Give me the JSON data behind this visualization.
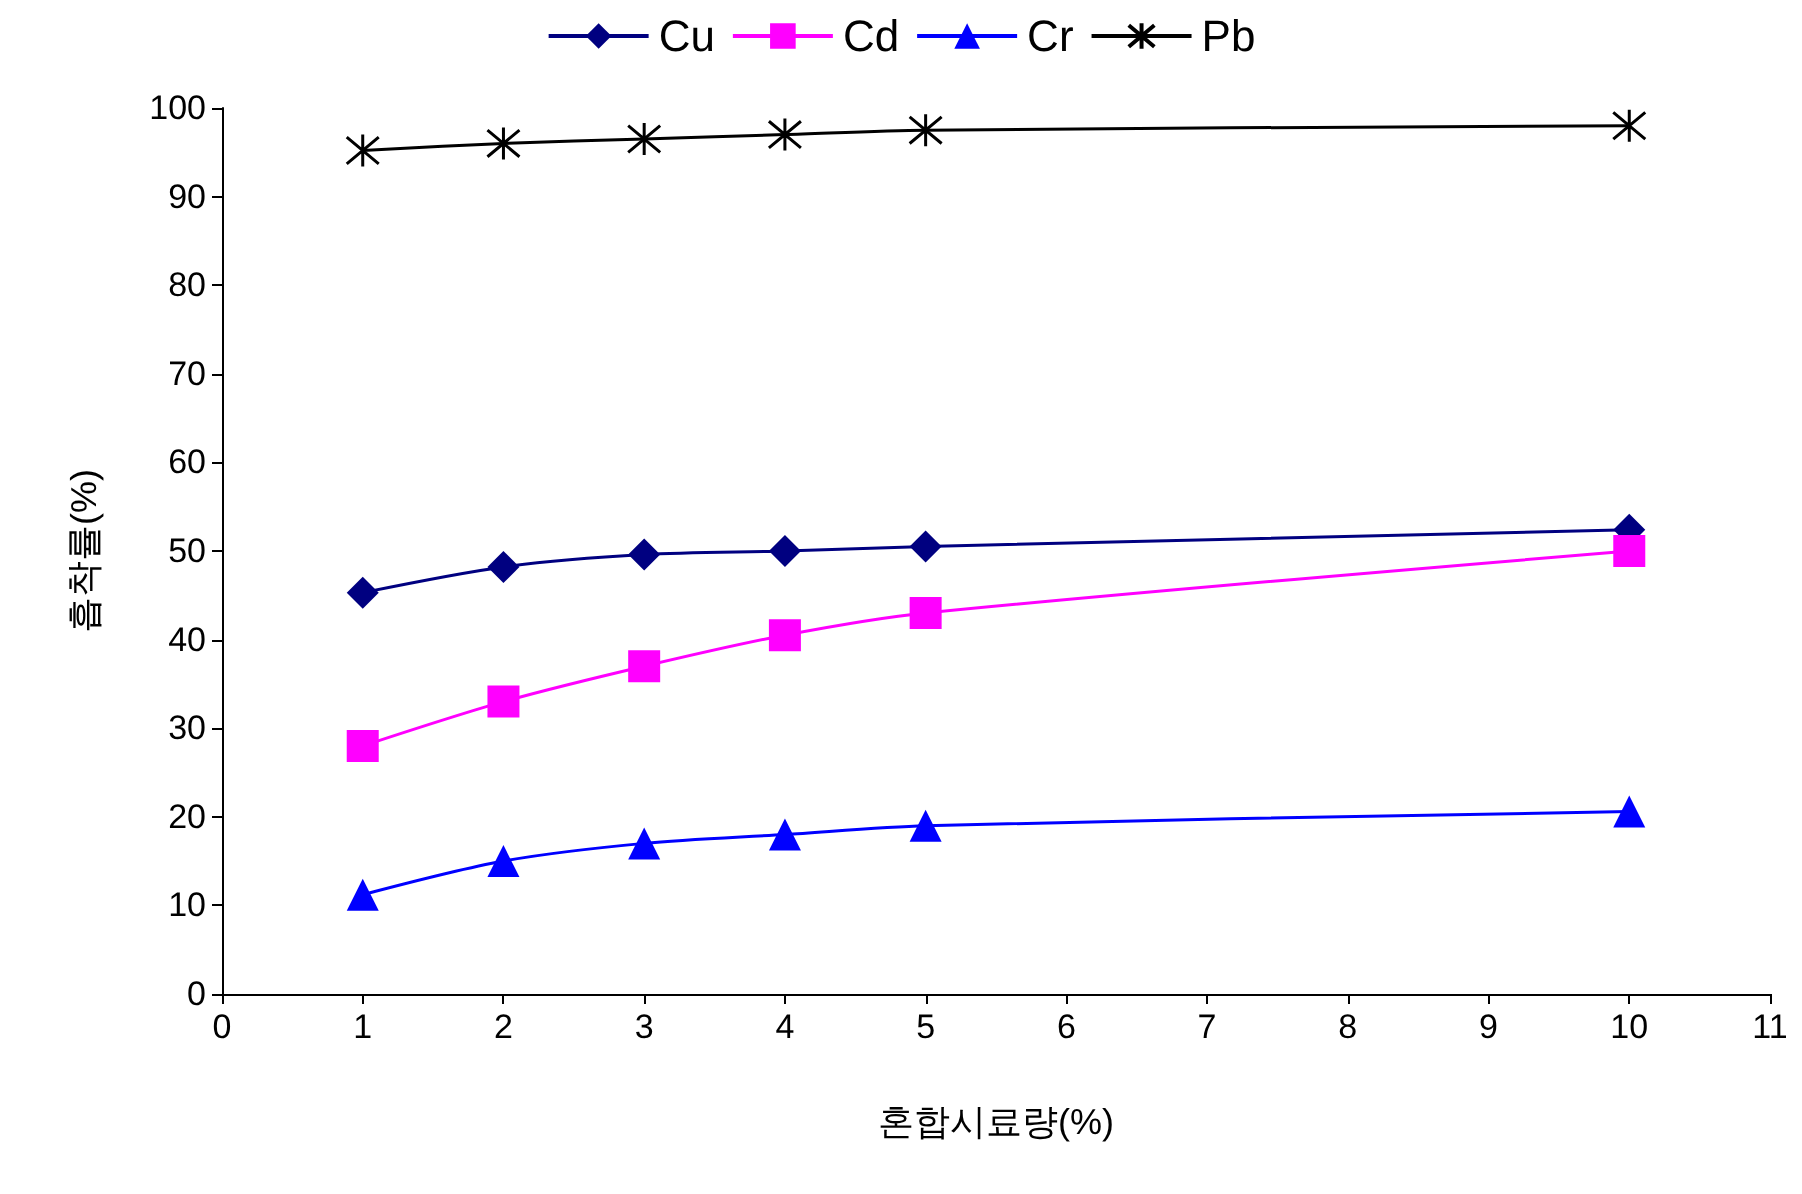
{
  "chart_data": {
    "type": "line",
    "xlabel": "혼합시료량(%)",
    "ylabel": "흡착률(%)",
    "x": [
      1,
      2,
      3,
      4,
      5,
      10
    ],
    "series": [
      {
        "name": "Cu",
        "color": "#000080",
        "marker": "diamond",
        "values": [
          45.3,
          48.2,
          49.6,
          50,
          50.5,
          52.4
        ]
      },
      {
        "name": "Cd",
        "color": "#ff00ff",
        "marker": "square",
        "values": [
          28,
          33,
          37,
          40.5,
          43,
          50
        ]
      },
      {
        "name": "Cr",
        "color": "#0000ff",
        "marker": "triangle",
        "values": [
          11.2,
          15,
          17,
          18,
          19,
          20.6
        ]
      },
      {
        "name": "Pb",
        "color": "#000000",
        "marker": "cross",
        "values": [
          95.2,
          96,
          96.5,
          97,
          97.5,
          98
        ]
      }
    ],
    "xlim": [
      0,
      11
    ],
    "xticks": [
      0,
      1,
      2,
      3,
      4,
      5,
      6,
      7,
      8,
      9,
      10,
      11
    ],
    "ylim": [
      0,
      100
    ],
    "yticks": [
      0,
      10,
      20,
      30,
      40,
      50,
      60,
      70,
      80,
      90,
      100
    ],
    "grid": false,
    "legend": "top",
    "line_style": "solid"
  }
}
